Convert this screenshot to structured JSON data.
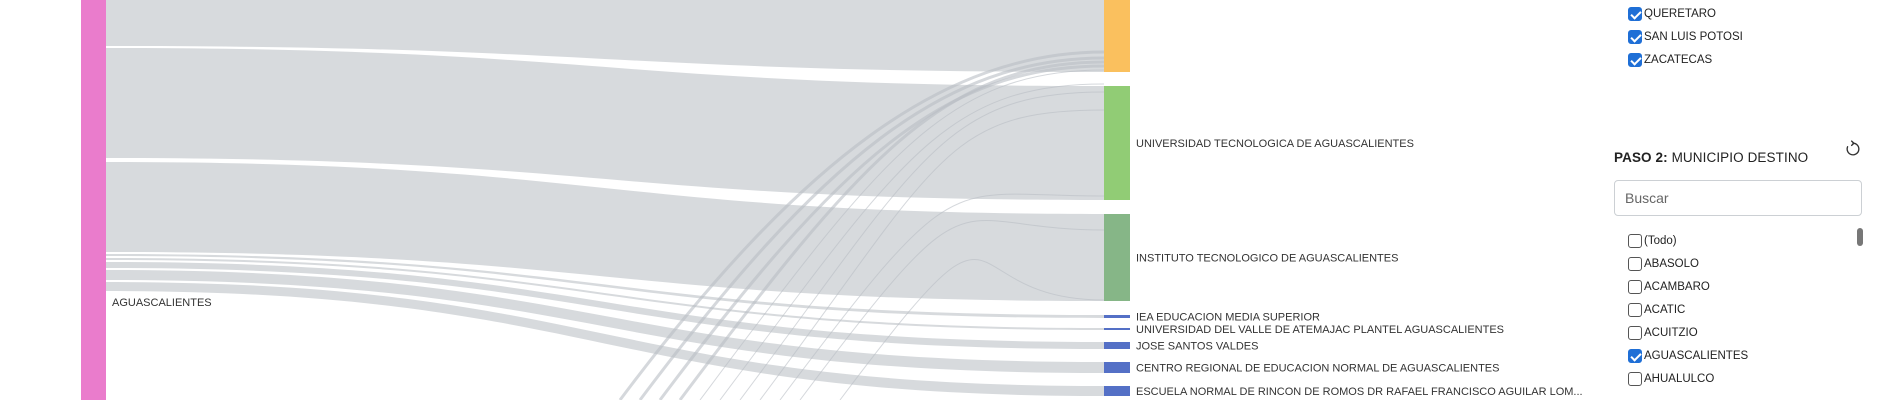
{
  "sankey": {
    "source_node": {
      "label": "AGUASCALIENTES",
      "color": "#ea7ccc"
    },
    "target_nodes": [
      {
        "label": "",
        "color": "#fac05e"
      },
      {
        "label": "UNIVERSIDAD TECNOLOGICA DE AGUASCALIENTES",
        "color": "#91cc75"
      },
      {
        "label": "INSTITUTO TECNOLOGICO DE AGUASCALIENTES",
        "color": "#86b687"
      },
      {
        "label": "IEA EDUCACION MEDIA SUPERIOR",
        "color": "#5470c6"
      },
      {
        "label": "UNIVERSIDAD DEL VALLE DE ATEMAJAC PLANTEL AGUASCALIENTES",
        "color": "#5470c6"
      },
      {
        "label": "JOSE SANTOS VALDES",
        "color": "#5470c6"
      },
      {
        "label": "CENTRO REGIONAL DE EDUCACION NORMAL DE AGUASCALIENTES",
        "color": "#5470c6"
      },
      {
        "label": "ESCUELA NORMAL DE RINCON DE ROMOS DR RAFAEL FRANCISCO AGUILAR LOM...",
        "color": "#5470c6"
      }
    ],
    "link_color": "#c9cdd2"
  },
  "filters": {
    "step1_visible_items": [
      {
        "label": "QUERETARO",
        "checked": true
      },
      {
        "label": "SAN LUIS POTOSI",
        "checked": true
      },
      {
        "label": "ZACATECAS",
        "checked": true
      }
    ],
    "step2": {
      "title_bold": "PASO 2:",
      "title_rest": " MUNICIPIO DESTINO",
      "reset_icon": "reset-icon",
      "search_placeholder": "Buscar",
      "items": [
        {
          "label": "(Todo)",
          "checked": false
        },
        {
          "label": "ABASOLO",
          "checked": false
        },
        {
          "label": "ACAMBARO",
          "checked": false
        },
        {
          "label": "ACATIC",
          "checked": false
        },
        {
          "label": "ACUITZIO",
          "checked": false
        },
        {
          "label": "AGUASCALIENTES",
          "checked": true
        },
        {
          "label": "AHUALULCO",
          "checked": false
        }
      ]
    }
  }
}
